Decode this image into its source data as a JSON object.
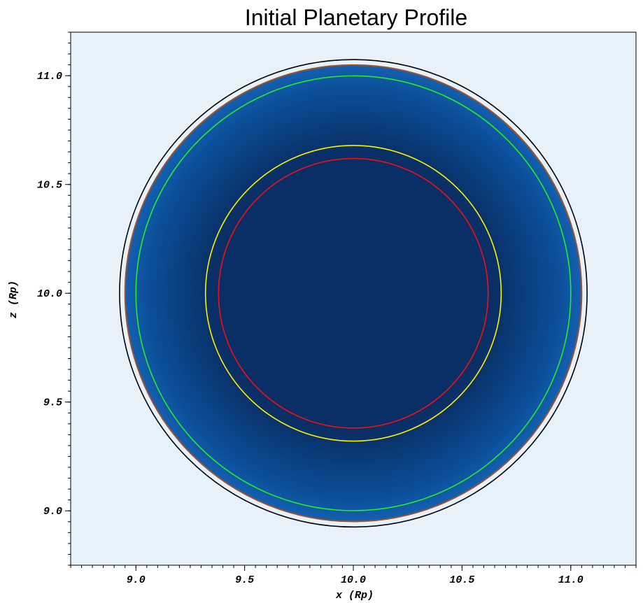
{
  "chart_data": {
    "type": "heatmap",
    "title": "Initial Planetary Profile",
    "xlabel": "x (Rp)",
    "ylabel": "z (Rp)",
    "xlim": [
      8.7,
      11.3
    ],
    "ylim": [
      8.75,
      11.2
    ],
    "x_ticks": [
      "9.0",
      "9.5",
      "10.0",
      "10.5",
      "11.0"
    ],
    "y_ticks": [
      "9.0",
      "9.5",
      "10.0",
      "10.5",
      "11.0"
    ],
    "x_tick_values": [
      9.0,
      9.5,
      10.0,
      10.5,
      11.0
    ],
    "y_tick_values": [
      9.0,
      9.5,
      10.0,
      10.5,
      11.0
    ],
    "minor_tick_step": 0.05,
    "center": [
      10.0,
      10.0
    ],
    "background_color": "#e6f1fa",
    "density_colors": {
      "core": "#0a2f66",
      "mid": "#0b4f99",
      "edge": "#1360b0"
    },
    "planet_radius": 1.05,
    "contours": [
      {
        "radius": 1.075,
        "color": "#000000"
      },
      {
        "radius": 1.05,
        "color": "#a0522d"
      },
      {
        "radius": 1.0,
        "color": "#22ee22"
      },
      {
        "radius": 0.68,
        "color": "#ffee00"
      },
      {
        "radius": 0.62,
        "color": "#ee1111"
      }
    ]
  }
}
